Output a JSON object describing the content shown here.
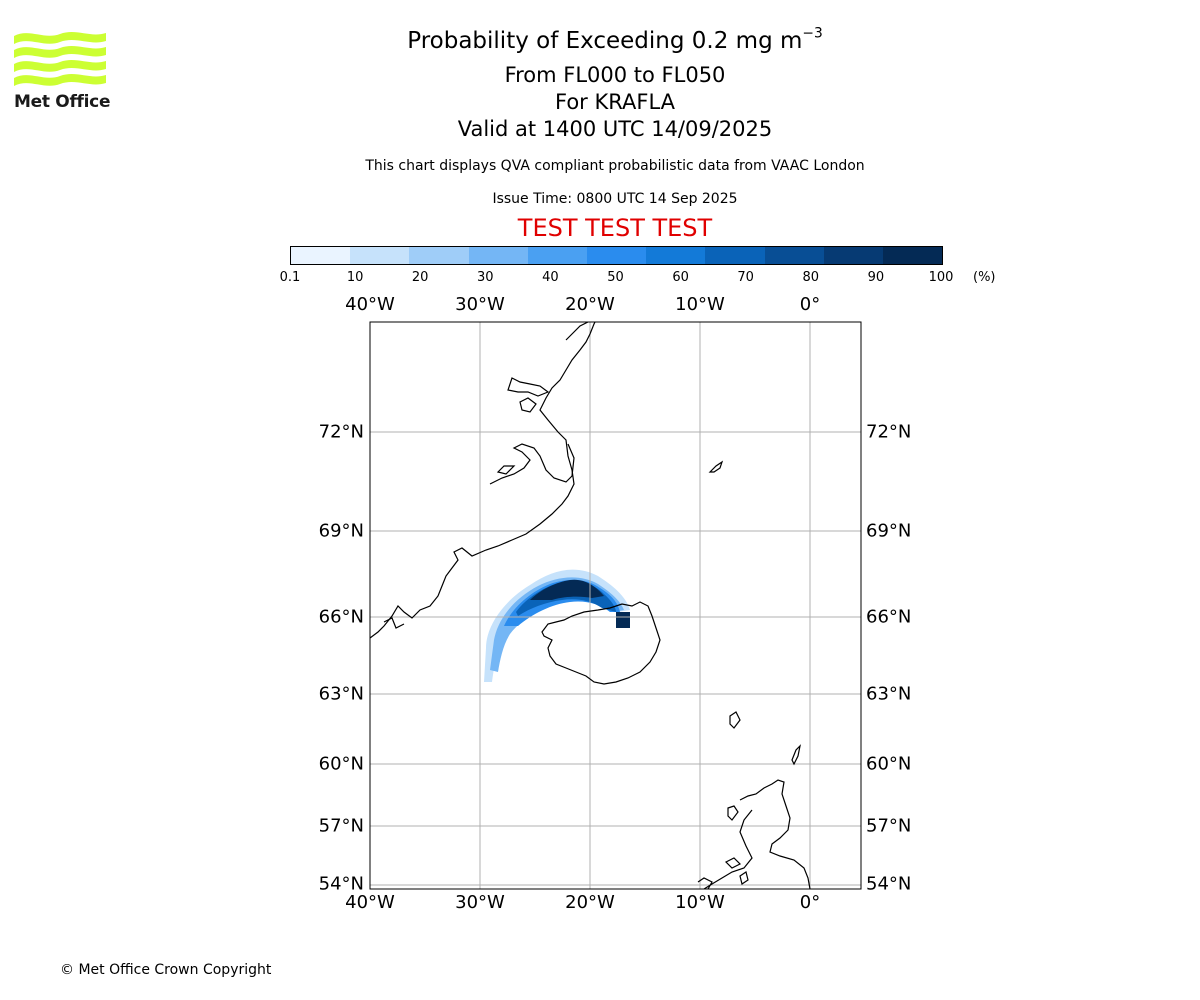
{
  "header": {
    "title_main": "Probability of Exceeding 0.2 mg m",
    "title_sup": "−3",
    "line_levels": "From FL000 to FL050",
    "line_volcano": "For KRAFLA",
    "line_valid": "Valid at 1400 UTC 14/09/2025",
    "line_desc": "This chart displays QVA compliant probabilistic data from VAAC London",
    "line_issue": "Issue Time: 0800 UTC 14 Sep 2025",
    "test_banner": "TEST TEST TEST"
  },
  "logo": {
    "text": "Met Office",
    "color": "#ccff33"
  },
  "colorbar": {
    "unit": "(%)",
    "ticks": [
      "0.1",
      "10",
      "20",
      "30",
      "40",
      "50",
      "60",
      "70",
      "80",
      "90",
      "100"
    ],
    "colors": [
      "#eaf4ff",
      "#c6e2fb",
      "#9fcdf8",
      "#74b6f5",
      "#4aa0f2",
      "#2a8cee",
      "#137ad8",
      "#0a63b8",
      "#084e95",
      "#063a73",
      "#042a55"
    ]
  },
  "map": {
    "lon_labels": [
      "40°W",
      "30°W",
      "20°W",
      "10°W",
      "0°"
    ],
    "lat_labels": [
      "72°N",
      "69°N",
      "66°N",
      "63°N",
      "60°N",
      "57°N",
      "54°N"
    ],
    "gridline_color": "#b0b0b0",
    "projection": "polar stereographic"
  },
  "footer": {
    "copyright": "© Met Office Crown Copyright"
  }
}
